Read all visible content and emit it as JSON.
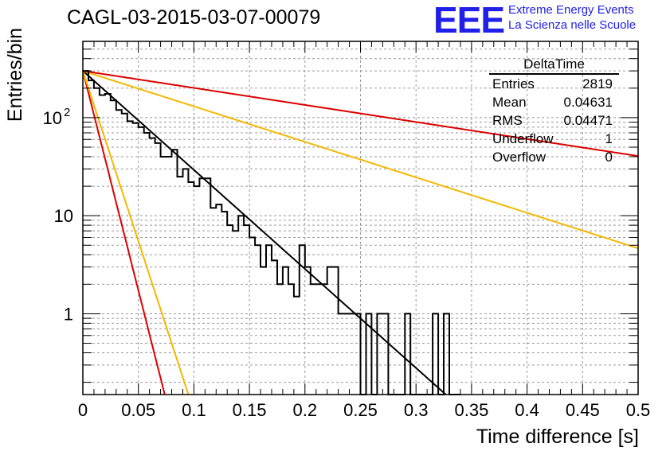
{
  "header": {
    "title": "CAGL-03-2015-03-07-00079",
    "logo_mark": "EEE",
    "logo_line1": "Extreme Energy Events",
    "logo_line2": "La Scienza nelle Scuole"
  },
  "stats_box": {
    "title": "DeltaTime",
    "rows": [
      {
        "label": "Entries",
        "value": "2819"
      },
      {
        "label": "Mean",
        "value": "0.04631"
      },
      {
        "label": "RMS",
        "value": "0.04471"
      },
      {
        "label": "Underflow",
        "value": "1"
      },
      {
        "label": "Overflow",
        "value": "0"
      }
    ]
  },
  "chart_data": {
    "type": "line",
    "xlabel": "Time difference [s]",
    "ylabel": "Entries/bin",
    "xlim": [
      0,
      0.5
    ],
    "ylim": [
      0.15,
      600
    ],
    "yscale": "log",
    "grid": true,
    "x_ticks": [
      "0",
      "0.05",
      "0.1",
      "0.15",
      "0.2",
      "0.25",
      "0.3",
      "0.35",
      "0.4",
      "0.45",
      "0.5"
    ],
    "y_ticks": [
      {
        "value": 1,
        "label": "1"
      },
      {
        "value": 10,
        "label": "10"
      },
      {
        "value": 100,
        "label": "10",
        "sup": "2"
      }
    ],
    "histogram": {
      "name": "DeltaTime",
      "bin_width": 0.005,
      "color": "#000000",
      "values": [
        300,
        240,
        200,
        170,
        175,
        150,
        120,
        110,
        92,
        88,
        80,
        70,
        62,
        55,
        40,
        40,
        47,
        25,
        30,
        22,
        20,
        24,
        24,
        12,
        13,
        11,
        8,
        7,
        10,
        8,
        6,
        5,
        3,
        5,
        3.5,
        2,
        3,
        2,
        1.5,
        5,
        3,
        2,
        2,
        2,
        3,
        3,
        1,
        1,
        1,
        1,
        0,
        1,
        0,
        1,
        1,
        0,
        0,
        0,
        1,
        0,
        0,
        0,
        0,
        1,
        0,
        1,
        0,
        0
      ]
    },
    "curves": [
      {
        "color": "#000000",
        "tau": 0.043
      },
      {
        "color": "#dd0000",
        "tau": 0.0097
      },
      {
        "color": "#f5b800",
        "tau": 0.0125
      },
      {
        "color": "#f5b800",
        "tau": 0.12
      },
      {
        "color": "#dd0000",
        "tau": 0.25
      }
    ],
    "curve_amplitude": 300
  }
}
